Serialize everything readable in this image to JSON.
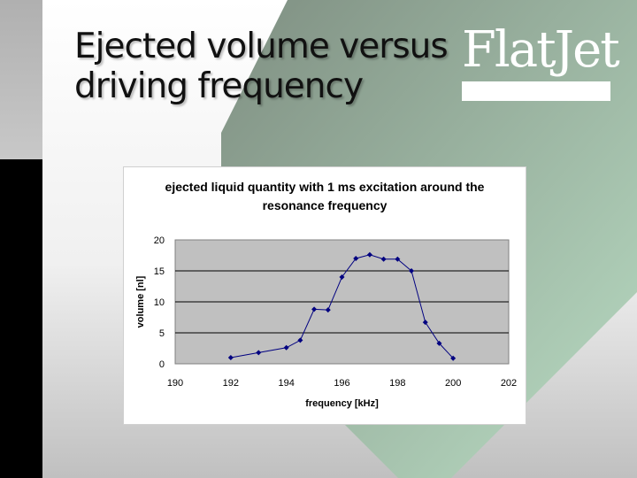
{
  "slide": {
    "title_line1": "Ejected volume versus",
    "title_line2": "driving frequency",
    "logo_text": "FlatJet",
    "colors": {
      "accent_green": "#a8c8b0",
      "dark_green": "#7f8f82",
      "series": "#000080",
      "plot_bg": "#c0c0c0"
    }
  },
  "chart_data": {
    "type": "line",
    "title": "ejected liquid quantity with 1 ms excitation around the resonance frequency",
    "xlabel": "frequency [kHz]",
    "ylabel": "volume [nl]",
    "xlim": [
      190,
      202
    ],
    "ylim": [
      0,
      20
    ],
    "xticks": [
      190,
      192,
      194,
      196,
      198,
      200,
      202
    ],
    "yticks": [
      0,
      5,
      10,
      15,
      20
    ],
    "grid": "horizontal",
    "series": [
      {
        "x": [
          192,
          193,
          194,
          194.5,
          195,
          195.5,
          196,
          196.5,
          197,
          197.5,
          198,
          198.5,
          199,
          199.5,
          200
        ],
        "y": [
          1,
          1.8,
          2.6,
          3.8,
          8.8,
          8.7,
          14,
          17,
          17.6,
          16.9,
          16.9,
          15,
          6.7,
          3.3,
          0.9
        ]
      }
    ]
  }
}
